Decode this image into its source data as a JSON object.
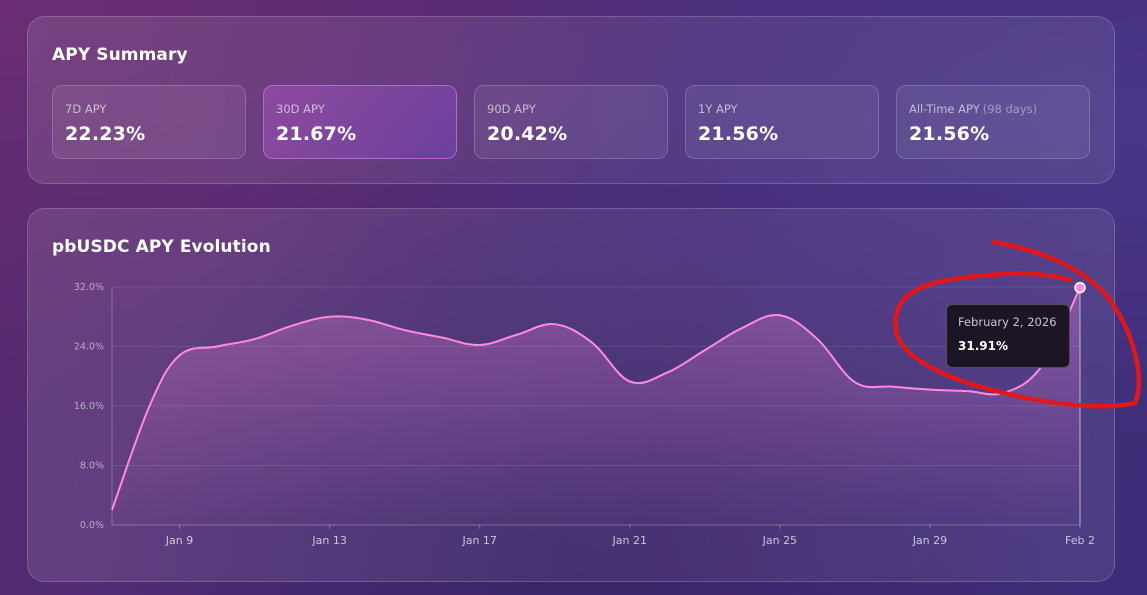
{
  "summary": {
    "title": "APY Summary",
    "cards": [
      {
        "label": "7D APY",
        "sub": "",
        "value": "22.23%"
      },
      {
        "label": "30D APY",
        "sub": "",
        "value": "21.67%"
      },
      {
        "label": "90D APY",
        "sub": "",
        "value": "20.42%"
      },
      {
        "label": "1Y APY",
        "sub": "",
        "value": "21.56%"
      },
      {
        "label": "All-Time APY",
        "sub": "(98 days)",
        "value": "21.56%"
      }
    ],
    "active_index": 1
  },
  "chart": {
    "title": "pbUSDC APY Evolution",
    "tooltip": {
      "date": "February 2, 2026",
      "value": "31.91%"
    }
  },
  "colors": {
    "line": "#ff8be0",
    "annotation": "#e0181c"
  },
  "chart_data": {
    "type": "area",
    "title": "pbUSDC APY Evolution",
    "xlabel": "",
    "ylabel": "",
    "y_ticks": [
      "0.0%",
      "8.0%",
      "16.0%",
      "24.0%",
      "32.0%"
    ],
    "ylim": [
      0,
      32
    ],
    "x_ticks": [
      "Jan 9",
      "Jan 13",
      "Jan 17",
      "Jan 21",
      "Jan 25",
      "Jan 29",
      "Feb 2"
    ],
    "x_tick_days": [
      9,
      13,
      17,
      21,
      25,
      29,
      33
    ],
    "x": [
      7.2,
      8.2,
      9,
      10,
      11,
      12,
      13,
      14,
      15,
      16,
      17,
      18,
      19,
      20,
      21,
      22,
      23,
      24,
      25,
      26,
      27,
      28,
      29,
      30,
      31,
      32,
      33
    ],
    "y": [
      2.0,
      16.0,
      22.8,
      24.0,
      25.0,
      26.8,
      28.0,
      27.6,
      26.2,
      25.2,
      24.2,
      25.6,
      27.0,
      24.5,
      19.3,
      20.5,
      23.5,
      26.5,
      28.2,
      25.0,
      19.2,
      18.6,
      18.2,
      18.0,
      17.8,
      21.5,
      31.91
    ],
    "grid": true,
    "legend": "none"
  },
  "annotation": {
    "shape": "circle",
    "target": "tooltip"
  }
}
